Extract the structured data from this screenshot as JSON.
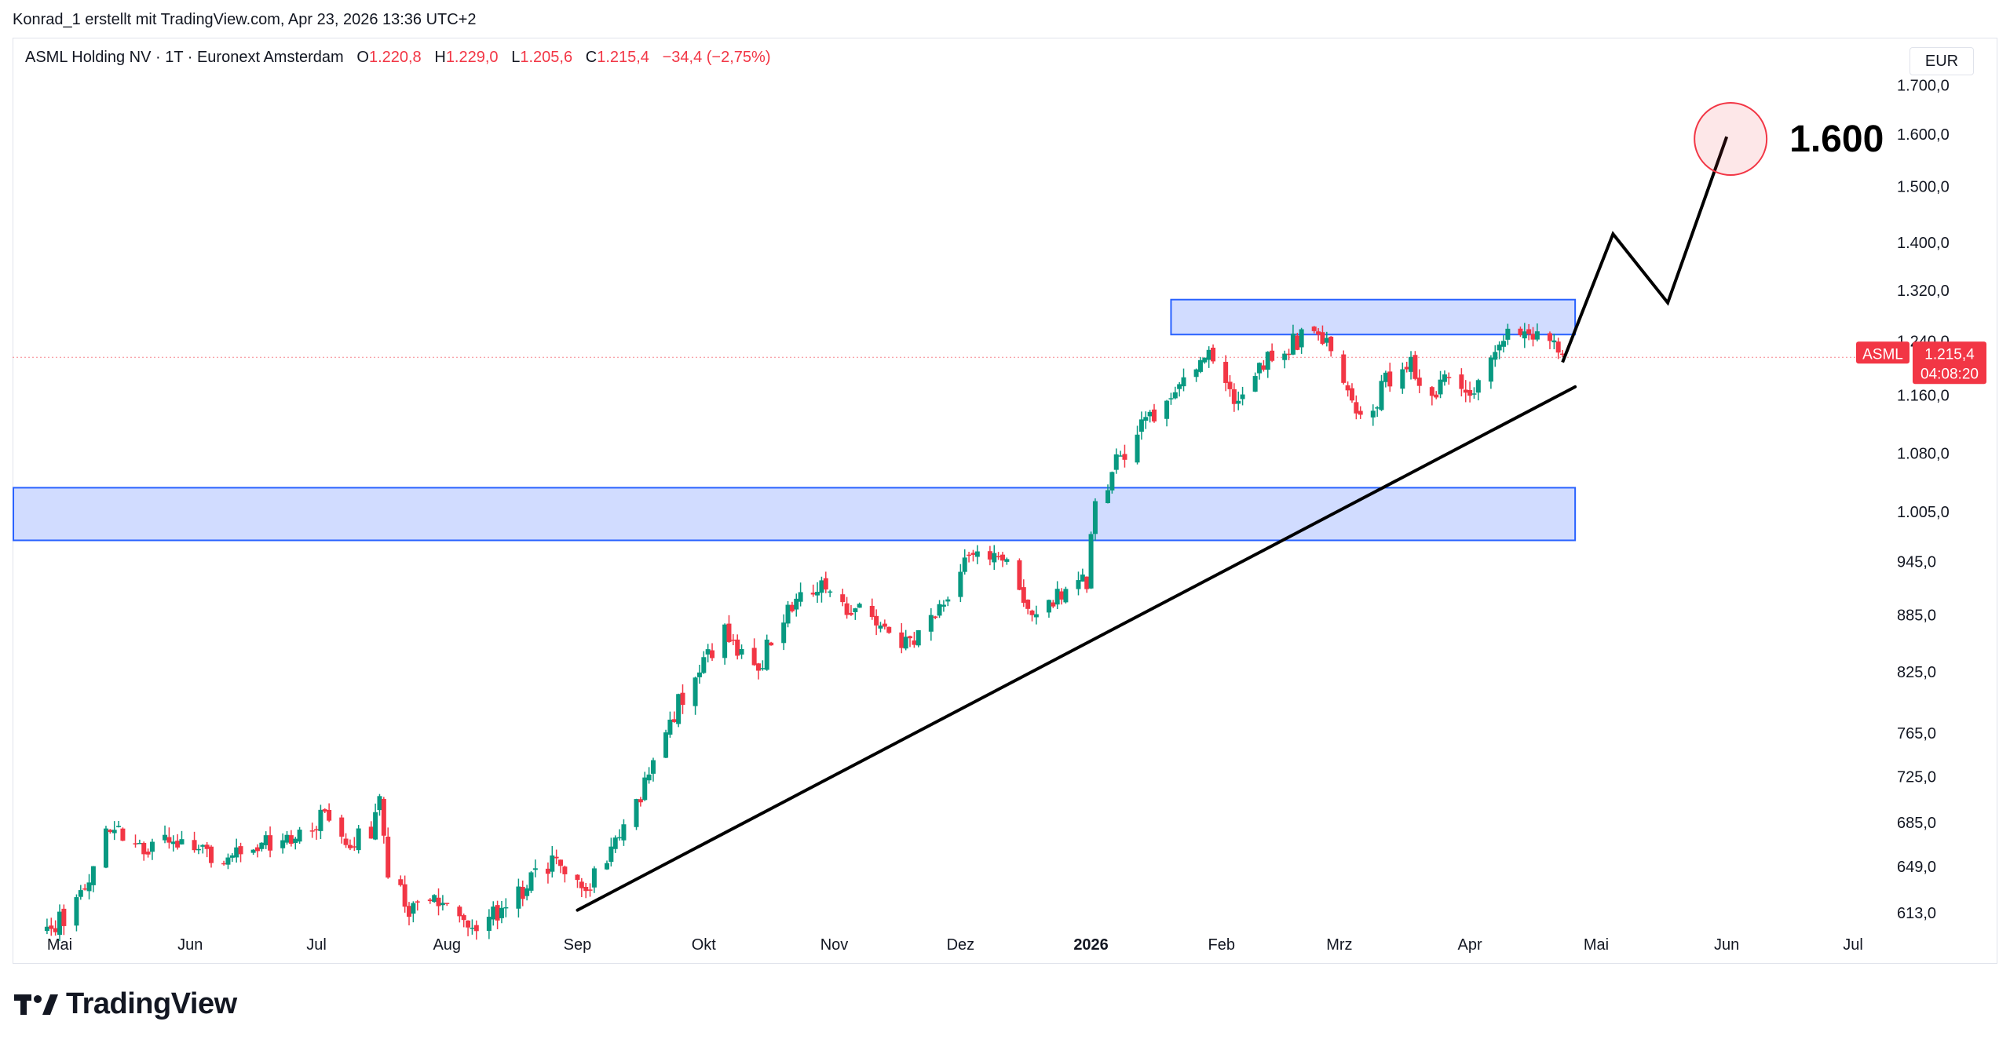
{
  "credit": "Konrad_1 erstellt mit TradingView.com, Apr 23, 2026 13:36 UTC+2",
  "header": {
    "symbol": "ASML Holding NV · 1T · Euronext Amsterdam",
    "o_label": "O",
    "o_value": "1.220,8",
    "h_label": "H",
    "h_value": "1.229,0",
    "l_label": "L",
    "l_value": "1.205,6",
    "c_label": "C",
    "c_value": "1.215,4",
    "change": "−34,4 (−2,75%)"
  },
  "currency": "EUR",
  "logo_text": "TradingView",
  "colors": {
    "up": "#089981",
    "down": "#f23645",
    "zone_fill": "#d1dcff",
    "zone_stroke": "#2962ff",
    "text": "#131722"
  },
  "chart_data": {
    "type": "candlestick",
    "y_scale": "log",
    "y_ticks": [
      {
        "value": 1700,
        "label": "1.700,0"
      },
      {
        "value": 1600,
        "label": "1.600,0"
      },
      {
        "value": 1500,
        "label": "1.500,0"
      },
      {
        "value": 1400,
        "label": "1.400,0"
      },
      {
        "value": 1320,
        "label": "1.320,0"
      },
      {
        "value": 1240,
        "label": "1.240,0"
      },
      {
        "value": 1160,
        "label": "1.160,0"
      },
      {
        "value": 1080,
        "label": "1.080,0"
      },
      {
        "value": 1005,
        "label": "1.005,0"
      },
      {
        "value": 945,
        "label": "945,0"
      },
      {
        "value": 885,
        "label": "885,0"
      },
      {
        "value": 825,
        "label": "825,0"
      },
      {
        "value": 765,
        "label": "765,0"
      },
      {
        "value": 725,
        "label": "725,0"
      },
      {
        "value": 685,
        "label": "685,0"
      },
      {
        "value": 649,
        "label": "649,0"
      },
      {
        "value": 613,
        "label": "613,0"
      }
    ],
    "x_ticks": [
      {
        "date": "2025-05-01",
        "label": "Mai",
        "bold": false
      },
      {
        "date": "2025-06-01",
        "label": "Jun",
        "bold": false
      },
      {
        "date": "2025-07-01",
        "label": "Jul",
        "bold": false
      },
      {
        "date": "2025-08-01",
        "label": "Aug",
        "bold": false
      },
      {
        "date": "2025-09-01",
        "label": "Sep",
        "bold": false
      },
      {
        "date": "2025-10-01",
        "label": "Okt",
        "bold": false
      },
      {
        "date": "2025-11-01",
        "label": "Nov",
        "bold": false
      },
      {
        "date": "2025-12-01",
        "label": "Dez",
        "bold": false
      },
      {
        "date": "2026-01-01",
        "label": "2026",
        "bold": true
      },
      {
        "date": "2026-02-01",
        "label": "Feb",
        "bold": false
      },
      {
        "date": "2026-03-01",
        "label": "Mrz",
        "bold": false
      },
      {
        "date": "2026-04-01",
        "label": "Apr",
        "bold": false
      },
      {
        "date": "2026-05-01",
        "label": "Mai",
        "bold": false
      },
      {
        "date": "2026-06-01",
        "label": "Jun",
        "bold": false
      },
      {
        "date": "2026-07-01",
        "label": "Jul",
        "bold": false
      }
    ],
    "last_price": {
      "symbol": "ASML",
      "value": "1.215,4",
      "countdown": "04:08:20",
      "price": 1215.4
    },
    "annotation": {
      "label": "1.600",
      "date": "2026-06-01",
      "value": 1600
    },
    "zones": [
      {
        "from": "2025-04-20",
        "to": "2026-04-26",
        "low": 970,
        "high": 1035
      },
      {
        "from": "2026-01-20",
        "to": "2026-04-26",
        "low": 1250,
        "high": 1305
      }
    ],
    "trendline": {
      "from": {
        "date": "2025-09-01",
        "value": 615
      },
      "to": {
        "date": "2026-04-26",
        "value": 1172
      }
    },
    "projection": [
      {
        "date": "2026-04-23",
        "value": 1208
      },
      {
        "date": "2026-05-05",
        "value": 1415
      },
      {
        "date": "2026-05-18",
        "value": 1300
      },
      {
        "date": "2026-06-01",
        "value": 1595
      }
    ],
    "series": [
      {
        "name": "ASML",
        "anchors": [
          {
            "date": "2025-04-28",
            "close": 600
          },
          {
            "date": "2025-05-05",
            "close": 620
          },
          {
            "date": "2025-05-12",
            "close": 680
          },
          {
            "date": "2025-05-20",
            "close": 668
          },
          {
            "date": "2025-05-28",
            "close": 665
          },
          {
            "date": "2025-06-04",
            "close": 663
          },
          {
            "date": "2025-06-11",
            "close": 655
          },
          {
            "date": "2025-06-18",
            "close": 665
          },
          {
            "date": "2025-06-25",
            "close": 668
          },
          {
            "date": "2025-07-02",
            "close": 690
          },
          {
            "date": "2025-07-09",
            "close": 670
          },
          {
            "date": "2025-07-14",
            "close": 678
          },
          {
            "date": "2025-07-16",
            "close": 700
          },
          {
            "date": "2025-07-18",
            "close": 640
          },
          {
            "date": "2025-07-24",
            "close": 612
          },
          {
            "date": "2025-07-30",
            "close": 622
          },
          {
            "date": "2025-08-05",
            "close": 600
          },
          {
            "date": "2025-08-12",
            "close": 612
          },
          {
            "date": "2025-08-19",
            "close": 632
          },
          {
            "date": "2025-08-26",
            "close": 652
          },
          {
            "date": "2025-09-02",
            "close": 628
          },
          {
            "date": "2025-09-08",
            "close": 658
          },
          {
            "date": "2025-09-12",
            "close": 690
          },
          {
            "date": "2025-09-17",
            "close": 715
          },
          {
            "date": "2025-09-22",
            "close": 775
          },
          {
            "date": "2025-09-29",
            "close": 815
          },
          {
            "date": "2025-10-06",
            "close": 870
          },
          {
            "date": "2025-10-13",
            "close": 825
          },
          {
            "date": "2025-10-20",
            "close": 880
          },
          {
            "date": "2025-10-27",
            "close": 920
          },
          {
            "date": "2025-11-04",
            "close": 890
          },
          {
            "date": "2025-11-12",
            "close": 880
          },
          {
            "date": "2025-11-19",
            "close": 850
          },
          {
            "date": "2025-11-26",
            "close": 900
          },
          {
            "date": "2025-12-03",
            "close": 945
          },
          {
            "date": "2025-12-10",
            "close": 960
          },
          {
            "date": "2025-12-17",
            "close": 890
          },
          {
            "date": "2025-12-24",
            "close": 905
          },
          {
            "date": "2025-12-31",
            "close": 925
          },
          {
            "date": "2026-01-02",
            "close": 1005
          },
          {
            "date": "2026-01-06",
            "close": 1060
          },
          {
            "date": "2026-01-12",
            "close": 1110
          },
          {
            "date": "2026-01-19",
            "close": 1160
          },
          {
            "date": "2026-01-26",
            "close": 1210
          },
          {
            "date": "2026-01-29",
            "close": 1220
          },
          {
            "date": "2026-02-04",
            "close": 1150
          },
          {
            "date": "2026-02-11",
            "close": 1210
          },
          {
            "date": "2026-02-18",
            "close": 1240
          },
          {
            "date": "2026-02-24",
            "close": 1260
          },
          {
            "date": "2026-03-02",
            "close": 1190
          },
          {
            "date": "2026-03-07",
            "close": 1110
          },
          {
            "date": "2026-03-12",
            "close": 1180
          },
          {
            "date": "2026-03-18",
            "close": 1210
          },
          {
            "date": "2026-03-23",
            "close": 1150
          },
          {
            "date": "2026-03-28",
            "close": 1200
          },
          {
            "date": "2026-04-01",
            "close": 1150
          },
          {
            "date": "2026-04-06",
            "close": 1210
          },
          {
            "date": "2026-04-10",
            "close": 1250
          },
          {
            "date": "2026-04-15",
            "close": 1240
          },
          {
            "date": "2026-04-20",
            "close": 1235
          },
          {
            "date": "2026-04-23",
            "close": 1215
          }
        ]
      }
    ]
  }
}
